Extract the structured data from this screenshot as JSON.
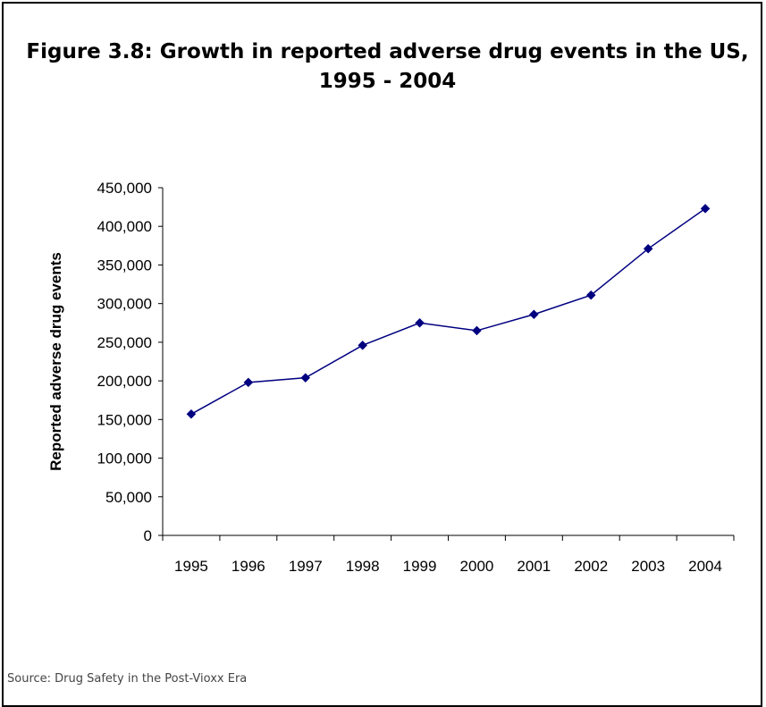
{
  "title_lines": [
    "Figure 3.8: Growth in reported adverse drug events in the US,",
    "1995 - 2004"
  ],
  "source": "Source: Drug Safety in the Post-Vioxx Era",
  "colors": {
    "series": "#000080",
    "marker": "#000080",
    "axis": "#000000",
    "text": "#000000"
  },
  "chart_data": {
    "type": "line",
    "title": "",
    "xlabel": "",
    "ylabel": "Reported adverse drug events",
    "categories": [
      "1995",
      "1996",
      "1997",
      "1998",
      "1999",
      "2000",
      "2001",
      "2002",
      "2003",
      "2004"
    ],
    "series": [
      {
        "values": [
          157000,
          198000,
          204000,
          246000,
          275000,
          265000,
          286000,
          311000,
          371000,
          423000
        ]
      }
    ],
    "ylim": [
      0,
      450000
    ],
    "yticks": [
      0,
      50000,
      100000,
      150000,
      200000,
      250000,
      300000,
      350000,
      400000,
      450000
    ],
    "ytick_labels": [
      "0",
      "50,000",
      "100,000",
      "150,000",
      "200,000",
      "250,000",
      "300,000",
      "350,000",
      "400,000",
      "450,000"
    ],
    "grid": false,
    "legend": "none",
    "marker": "diamond"
  }
}
